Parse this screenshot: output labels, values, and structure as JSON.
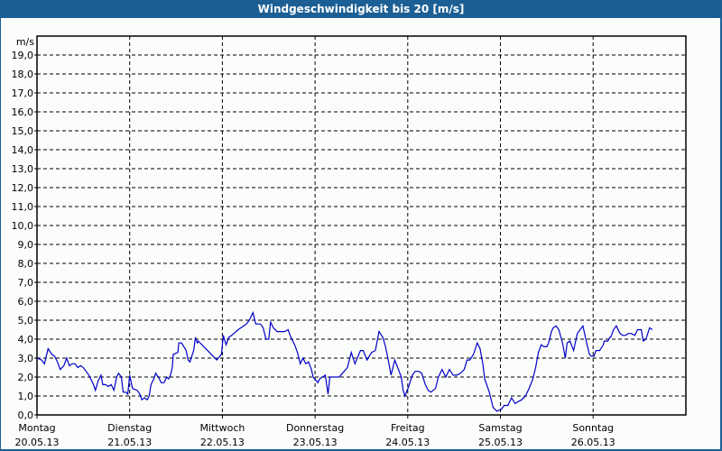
{
  "window": {
    "title": "Windgeschwindigkeit bis 20 [m/s]"
  },
  "colors": {
    "frame": "#1c5f94",
    "background": "#fbfdfb",
    "line": "#0000c8",
    "grid": "#000000"
  },
  "chart_data": {
    "type": "line",
    "title": "Windgeschwindigkeit bis 20 [m/s]",
    "ylabel": "m/s",
    "xlabel": "",
    "ylim": [
      0,
      20
    ],
    "yticks": [
      "0,0",
      "1,0",
      "2,0",
      "3,0",
      "4,0",
      "5,0",
      "6,0",
      "7,0",
      "8,0",
      "9,0",
      "10,0",
      "11,0",
      "12,0",
      "13,0",
      "14,0",
      "15,0",
      "16,0",
      "17,0",
      "18,0",
      "19,0"
    ],
    "xticks": [
      {
        "day": "Montag",
        "date": "20.05.13"
      },
      {
        "day": "Dienstag",
        "date": "21.05.13"
      },
      {
        "day": "Mittwoch",
        "date": "22.05.13"
      },
      {
        "day": "Donnerstag",
        "date": "23.05.13"
      },
      {
        "day": "Freitag",
        "date": "24.05.13"
      },
      {
        "day": "Samstag",
        "date": "25.05.13"
      },
      {
        "day": "Sonntag",
        "date": "26.05.13"
      }
    ],
    "grid": true,
    "legend": null,
    "series": [
      {
        "name": "Windgeschwindigkeit",
        "x_days": [
          0.0,
          0.05,
          0.08,
          0.12,
          0.16,
          0.19,
          0.22,
          0.25,
          0.29,
          0.32,
          0.35,
          0.38,
          0.41,
          0.44,
          0.47,
          0.5,
          0.53,
          0.56,
          0.58,
          0.61,
          0.63,
          0.66,
          0.69,
          0.71,
          0.74,
          0.77,
          0.8,
          0.83,
          0.86,
          0.88,
          0.91,
          0.93,
          0.96,
          0.98,
          1.0,
          1.03,
          1.08,
          1.11,
          1.13,
          1.16,
          1.19,
          1.21,
          1.23,
          1.26,
          1.28,
          1.32,
          1.34,
          1.37,
          1.4,
          1.42,
          1.44,
          1.46,
          1.47,
          1.52,
          1.53,
          1.56,
          1.61,
          1.63,
          1.65,
          1.67,
          1.69,
          1.71,
          1.73,
          1.74,
          1.94,
          1.99,
          2.01,
          2.04,
          2.07,
          2.1,
          2.17,
          2.26,
          2.29,
          2.33,
          2.36,
          2.41,
          2.44,
          2.47,
          2.5,
          2.52,
          2.55,
          2.59,
          2.67,
          2.71,
          2.73,
          2.78,
          2.81,
          2.84,
          2.87,
          2.9,
          2.93,
          2.96,
          2.98,
          3.03,
          3.05,
          3.11,
          3.14,
          3.16,
          3.2,
          3.23,
          3.26,
          3.35,
          3.39,
          3.43,
          3.49,
          3.52,
          3.56,
          3.61,
          3.65,
          3.69,
          3.73,
          3.76,
          3.79,
          3.82,
          3.86,
          3.9,
          3.93,
          3.95,
          3.97,
          4.01,
          4.05,
          4.08,
          4.12,
          4.15,
          4.19,
          4.22,
          4.25,
          4.3,
          4.33,
          4.37,
          4.41,
          4.45,
          4.49,
          4.53,
          4.57,
          4.61,
          4.64,
          4.67,
          4.71,
          4.75,
          4.78,
          4.81,
          4.83,
          4.88,
          4.92,
          4.96,
          5.01,
          5.04,
          5.08,
          5.12,
          5.16,
          5.19,
          5.23,
          5.27,
          5.31,
          5.35,
          5.38,
          5.41,
          5.44,
          5.47,
          5.5,
          5.52,
          5.55,
          5.57,
          5.6,
          5.63,
          5.67,
          5.7,
          5.72,
          5.75,
          5.79,
          5.83,
          5.86,
          5.89,
          5.93,
          5.96,
          5.98,
          6.01,
          6.03,
          6.06,
          6.07,
          6.11,
          6.12,
          6.16,
          6.18,
          6.19,
          6.22,
          6.25,
          6.29,
          6.32,
          6.35,
          6.38,
          6.41,
          6.45,
          6.48,
          6.52,
          6.54,
          6.57,
          6.61,
          6.64,
          6.69,
          6.72,
          6.76,
          6.79,
          6.83,
          6.87,
          6.91,
          6.93,
          6.97,
          7.0
        ],
        "values": [
          3.0,
          2.9,
          2.7,
          3.5,
          3.2,
          3.1,
          2.8,
          2.4,
          2.6,
          3.0,
          2.6,
          2.7,
          2.7,
          2.5,
          2.6,
          2.5,
          2.3,
          2.1,
          1.9,
          1.6,
          1.3,
          1.8,
          2.1,
          1.6,
          1.6,
          1.5,
          1.6,
          1.3,
          2.0,
          2.2,
          2.0,
          1.2,
          1.2,
          1.1,
          2.1,
          1.4,
          1.3,
          1.1,
          0.8,
          0.9,
          0.8,
          1.0,
          1.6,
          1.9,
          2.2,
          1.9,
          1.7,
          1.7,
          2.0,
          1.9,
          2.1,
          2.5,
          3.2,
          3.3,
          3.8,
          3.8,
          3.4,
          2.9,
          2.8,
          3.1,
          3.4,
          4.1,
          3.8,
          3.9,
          2.9,
          3.2,
          4.2,
          3.7,
          4.1,
          4.2,
          4.5,
          4.8,
          5.0,
          5.4,
          4.8,
          4.8,
          4.6,
          4.0,
          4.0,
          4.9,
          4.6,
          4.4,
          4.4,
          4.5,
          4.2,
          3.7,
          3.3,
          2.7,
          3.0,
          2.7,
          2.8,
          2.4,
          2.0,
          1.7,
          1.9,
          2.1,
          1.1,
          2.0,
          2.0,
          2.0,
          2.0,
          2.5,
          3.3,
          2.7,
          3.4,
          3.4,
          2.9,
          3.3,
          3.4,
          4.4,
          4.1,
          3.6,
          2.9,
          2.1,
          2.9,
          2.4,
          2.0,
          1.3,
          1.0,
          1.5,
          2.1,
          2.3,
          2.3,
          2.2,
          1.6,
          1.3,
          1.2,
          1.4,
          2.0,
          2.4,
          2.0,
          2.4,
          2.1,
          2.1,
          2.2,
          2.4,
          2.9,
          2.9,
          3.2,
          3.8,
          3.5,
          2.7,
          1.9,
          1.2,
          0.4,
          0.2,
          0.3,
          0.5,
          0.5,
          0.9,
          0.6,
          0.7,
          0.8,
          1.0,
          1.4,
          1.9,
          2.5,
          3.3,
          3.7,
          3.6,
          3.6,
          3.8,
          4.4,
          4.6,
          4.7,
          4.5,
          3.8,
          3.0,
          3.8,
          3.9,
          3.4,
          4.3,
          4.5,
          4.7,
          3.8,
          3.2,
          3.1,
          3.1,
          3.4,
          3.4,
          3.4,
          3.7,
          3.9,
          3.9,
          4.1,
          4.1,
          4.5,
          4.7,
          4.3,
          4.2,
          4.2,
          4.3,
          4.3,
          4.2,
          4.5,
          4.5,
          3.9,
          4.0,
          4.6,
          4.5
        ]
      }
    ]
  }
}
